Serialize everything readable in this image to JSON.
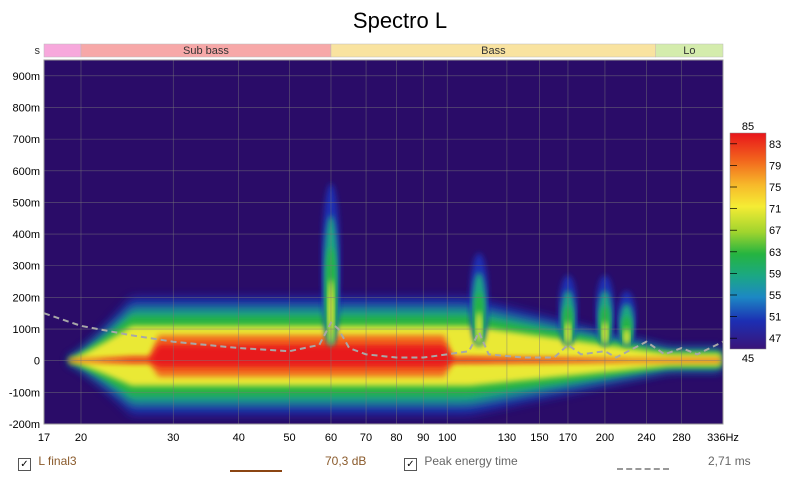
{
  "title": "Spectro L",
  "chart_data": {
    "type": "heatmap",
    "title": "Spectro L",
    "x_scale": "log",
    "x_range_hz": [
      17,
      336
    ],
    "x_ticks": [
      17,
      20,
      30,
      40,
      50,
      60,
      70,
      80,
      90,
      100,
      130,
      150,
      170,
      200,
      240,
      280,
      336
    ],
    "x_tick_labels": [
      "17",
      "20",
      "30",
      "40",
      "50",
      "60",
      "70",
      "80",
      "90",
      "100",
      "130",
      "150",
      "170",
      "200",
      "240",
      "280",
      "336Hz"
    ],
    "y_range_s": [
      -0.2,
      0.95
    ],
    "y_ticks": [
      -0.2,
      -0.1,
      0,
      0.1,
      0.2,
      0.3,
      0.4,
      0.5,
      0.6,
      0.7,
      0.8,
      0.9
    ],
    "y_tick_labels": [
      "-200m",
      "-100m",
      "0",
      "100m",
      "200m",
      "300m",
      "400m",
      "500m",
      "600m",
      "700m",
      "800m",
      "900m"
    ],
    "bands": [
      {
        "label": "s",
        "from": 17,
        "to": 20,
        "color": "#f7a8dc"
      },
      {
        "label": "Sub bass",
        "from": 20,
        "to": 60,
        "color": "#f7a8a8"
      },
      {
        "label": "Bass",
        "from": 60,
        "to": 250,
        "color": "#f9e3a0"
      },
      {
        "label": "Lo",
        "from": 250,
        "to": 336,
        "color": "#d4ecac"
      }
    ],
    "colorscale": {
      "min": 45,
      "max": 85,
      "top_label": "85",
      "bottom_label": "45",
      "labels": [
        "83",
        "79",
        "75",
        "71",
        "67",
        "63",
        "59",
        "55",
        "51",
        "47"
      ],
      "label_values": [
        83,
        79,
        75,
        71,
        67,
        63,
        59,
        55,
        51,
        47
      ]
    },
    "background_color": "#2a0c68",
    "peak_energy_time": {
      "name": "Peak energy time",
      "x": [
        17,
        20,
        25,
        30,
        40,
        50,
        57,
        60,
        62,
        65,
        70,
        80,
        90,
        100,
        110,
        115,
        120,
        140,
        160,
        170,
        180,
        200,
        210,
        240,
        260,
        280,
        300,
        336
      ],
      "y": [
        0.15,
        0.11,
        0.08,
        0.06,
        0.04,
        0.03,
        0.05,
        0.12,
        0.1,
        0.04,
        0.02,
        0.01,
        0.01,
        0.02,
        0.03,
        0.09,
        0.02,
        0.01,
        0.01,
        0.05,
        0.02,
        0.03,
        0.01,
        0.06,
        0.02,
        0.04,
        0.02,
        0.06
      ]
    },
    "peaks": [
      {
        "x_hz": 60,
        "top_s": 0.56
      },
      {
        "x_hz": 115,
        "top_s": 0.34
      },
      {
        "x_hz": 170,
        "top_s": 0.27
      },
      {
        "x_hz": 200,
        "top_s": 0.27
      },
      {
        "x_hz": 220,
        "top_s": 0.22
      }
    ]
  },
  "legend": {
    "series1_checked": "✓",
    "series1_label": "L final3",
    "series1_value": "70,3 dB",
    "series1_color": "#8b4513",
    "series2_checked": "✓",
    "series2_label": "Peak energy time",
    "series2_value": "2,71 ms",
    "series2_color": "#999999"
  }
}
